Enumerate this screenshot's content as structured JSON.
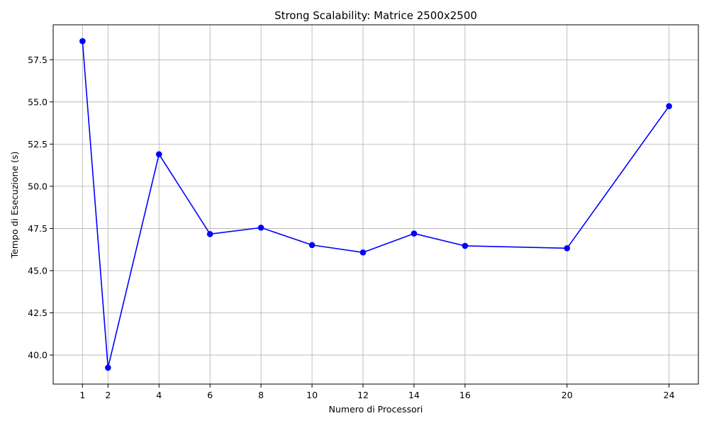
{
  "chart_data": {
    "type": "line",
    "title": "Strong Scalability: Matrice 2500x2500",
    "xlabel": "Numero di Processori",
    "ylabel": "Tempo di Esecuzione (s)",
    "x": [
      1,
      2,
      4,
      6,
      8,
      10,
      12,
      14,
      16,
      20,
      24
    ],
    "series": [
      {
        "values": [
          58.6,
          39.25,
          51.9,
          47.17,
          47.55,
          46.52,
          46.08,
          47.2,
          46.47,
          46.33,
          54.75
        ],
        "color": "#0000ff",
        "marker": "circle"
      }
    ],
    "xticks": [
      1,
      2,
      4,
      6,
      8,
      10,
      12,
      14,
      16,
      20,
      24
    ],
    "xtick_labels": [
      "1",
      "2",
      "4",
      "6",
      "8",
      "10",
      "12",
      "14",
      "16",
      "20",
      "24"
    ],
    "yticks": [
      40.0,
      42.5,
      45.0,
      47.5,
      50.0,
      52.5,
      55.0,
      57.5
    ],
    "ytick_labels": [
      "40.0",
      "42.5",
      "45.0",
      "47.5",
      "50.0",
      "52.5",
      "55.0",
      "57.5"
    ],
    "xlim": [
      -0.15,
      25.15
    ],
    "ylim": [
      38.28,
      59.57
    ],
    "grid": true,
    "grid_color": "#b0b0b0",
    "axis_color": "#000000"
  }
}
